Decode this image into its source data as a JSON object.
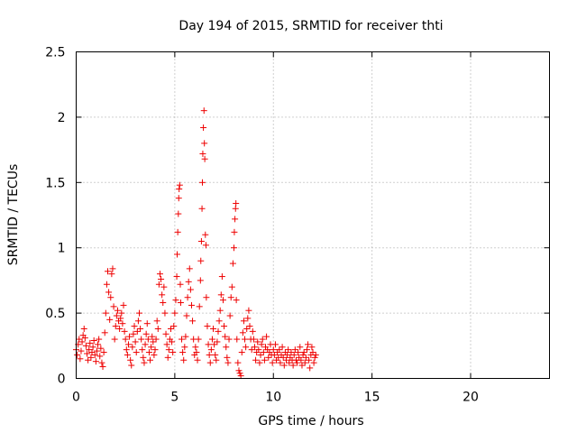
{
  "chart_data": {
    "type": "scatter",
    "title": "Day 194 of 2015, SRMTID for receiver thti",
    "xlabel": "GPS time / hours",
    "ylabel": "SRMTID / TECUs",
    "xlim": [
      0,
      24
    ],
    "ylim": [
      0,
      2.5
    ],
    "xticks": [
      0,
      5,
      10,
      15,
      20
    ],
    "yticks": [
      0,
      0.5,
      1,
      1.5,
      2,
      2.5
    ],
    "xtick_labels": [
      "0",
      "5",
      "10",
      "15",
      "20"
    ],
    "ytick_labels": [
      "0",
      "0.5",
      "1",
      "1.5",
      "2",
      "2.5"
    ],
    "grid": true,
    "marker": "plus",
    "series": [
      {
        "name": "SRMTID",
        "color": "#ee0000",
        "points": [
          [
            0.0,
            0.22
          ],
          [
            0.05,
            0.18
          ],
          [
            0.1,
            0.26
          ],
          [
            0.15,
            0.3
          ],
          [
            0.2,
            0.15
          ],
          [
            0.25,
            0.21
          ],
          [
            0.3,
            0.28
          ],
          [
            0.35,
            0.33
          ],
          [
            0.4,
            0.38
          ],
          [
            0.45,
            0.31
          ],
          [
            0.5,
            0.25
          ],
          [
            0.55,
            0.19
          ],
          [
            0.6,
            0.14
          ],
          [
            0.65,
            0.22
          ],
          [
            0.7,
            0.27
          ],
          [
            0.75,
            0.16
          ],
          [
            0.8,
            0.2
          ],
          [
            0.85,
            0.24
          ],
          [
            0.9,
            0.29
          ],
          [
            0.95,
            0.18
          ],
          [
            1.0,
            0.13
          ],
          [
            1.05,
            0.21
          ],
          [
            1.1,
            0.26
          ],
          [
            1.15,
            0.3
          ],
          [
            1.2,
            0.17
          ],
          [
            1.25,
            0.23
          ],
          [
            1.3,
            0.12
          ],
          [
            1.35,
            0.09
          ],
          [
            1.4,
            0.2
          ],
          [
            1.45,
            0.35
          ],
          [
            1.5,
            0.5
          ],
          [
            1.55,
            0.72
          ],
          [
            1.6,
            0.82
          ],
          [
            1.65,
            0.66
          ],
          [
            1.7,
            0.45
          ],
          [
            1.75,
            0.62
          ],
          [
            1.8,
            0.8
          ],
          [
            1.85,
            0.84
          ],
          [
            1.9,
            0.55
          ],
          [
            1.95,
            0.3
          ],
          [
            2.0,
            0.4
          ],
          [
            2.05,
            0.48
          ],
          [
            2.1,
            0.52
          ],
          [
            2.15,
            0.44
          ],
          [
            2.2,
            0.38
          ],
          [
            2.25,
            0.46
          ],
          [
            2.3,
            0.5
          ],
          [
            2.35,
            0.42
          ],
          [
            2.4,
            0.56
          ],
          [
            2.45,
            0.36
          ],
          [
            2.5,
            0.3
          ],
          [
            2.55,
            0.22
          ],
          [
            2.6,
            0.18
          ],
          [
            2.65,
            0.26
          ],
          [
            2.7,
            0.32
          ],
          [
            2.75,
            0.14
          ],
          [
            2.8,
            0.1
          ],
          [
            2.85,
            0.24
          ],
          [
            2.9,
            0.34
          ],
          [
            2.95,
            0.4
          ],
          [
            3.0,
            0.28
          ],
          [
            3.05,
            0.2
          ],
          [
            3.1,
            0.36
          ],
          [
            3.15,
            0.44
          ],
          [
            3.2,
            0.5
          ],
          [
            3.25,
            0.38
          ],
          [
            3.3,
            0.3
          ],
          [
            3.35,
            0.22
          ],
          [
            3.4,
            0.16
          ],
          [
            3.45,
            0.12
          ],
          [
            3.5,
            0.26
          ],
          [
            3.55,
            0.34
          ],
          [
            3.6,
            0.42
          ],
          [
            3.65,
            0.3
          ],
          [
            3.7,
            0.2
          ],
          [
            3.75,
            0.14
          ],
          [
            3.8,
            0.24
          ],
          [
            3.85,
            0.32
          ],
          [
            3.9,
            0.28
          ],
          [
            3.95,
            0.18
          ],
          [
            4.0,
            0.22
          ],
          [
            4.05,
            0.3
          ],
          [
            4.1,
            0.44
          ],
          [
            4.15,
            0.38
          ],
          [
            4.2,
            0.72
          ],
          [
            4.25,
            0.8
          ],
          [
            4.3,
            0.76
          ],
          [
            4.35,
            0.64
          ],
          [
            4.4,
            0.58
          ],
          [
            4.45,
            0.7
          ],
          [
            4.5,
            0.5
          ],
          [
            4.55,
            0.34
          ],
          [
            4.6,
            0.26
          ],
          [
            4.65,
            0.16
          ],
          [
            4.7,
            0.22
          ],
          [
            4.75,
            0.3
          ],
          [
            4.8,
            0.38
          ],
          [
            4.85,
            0.28
          ],
          [
            4.9,
            0.2
          ],
          [
            4.95,
            0.4
          ],
          [
            5.0,
            0.5
          ],
          [
            5.05,
            0.6
          ],
          [
            5.1,
            0.78
          ],
          [
            5.12,
            0.95
          ],
          [
            5.15,
            1.12
          ],
          [
            5.18,
            1.26
          ],
          [
            5.2,
            1.38
          ],
          [
            5.22,
            1.45
          ],
          [
            5.25,
            1.48
          ],
          [
            5.28,
            0.72
          ],
          [
            5.3,
            0.58
          ],
          [
            5.35,
            0.3
          ],
          [
            5.4,
            0.2
          ],
          [
            5.45,
            0.14
          ],
          [
            5.5,
            0.24
          ],
          [
            5.55,
            0.32
          ],
          [
            5.6,
            0.48
          ],
          [
            5.65,
            0.62
          ],
          [
            5.7,
            0.74
          ],
          [
            5.75,
            0.84
          ],
          [
            5.8,
            0.68
          ],
          [
            5.85,
            0.56
          ],
          [
            5.9,
            0.44
          ],
          [
            5.95,
            0.3
          ],
          [
            6.0,
            0.18
          ],
          [
            6.05,
            0.24
          ],
          [
            6.1,
            0.2
          ],
          [
            6.15,
            0.14
          ],
          [
            6.2,
            0.3
          ],
          [
            6.25,
            0.55
          ],
          [
            6.3,
            0.75
          ],
          [
            6.32,
            0.9
          ],
          [
            6.35,
            1.05
          ],
          [
            6.38,
            1.3
          ],
          [
            6.4,
            1.5
          ],
          [
            6.42,
            1.72
          ],
          [
            6.45,
            1.92
          ],
          [
            6.48,
            2.05
          ],
          [
            6.5,
            1.8
          ],
          [
            6.52,
            1.68
          ],
          [
            6.55,
            1.1
          ],
          [
            6.58,
            1.02
          ],
          [
            6.6,
            0.62
          ],
          [
            6.65,
            0.4
          ],
          [
            6.7,
            0.26
          ],
          [
            6.75,
            0.18
          ],
          [
            6.8,
            0.12
          ],
          [
            6.85,
            0.22
          ],
          [
            6.9,
            0.3
          ],
          [
            6.95,
            0.38
          ],
          [
            7.0,
            0.26
          ],
          [
            7.05,
            0.18
          ],
          [
            7.1,
            0.14
          ],
          [
            7.15,
            0.28
          ],
          [
            7.2,
            0.36
          ],
          [
            7.25,
            0.44
          ],
          [
            7.3,
            0.52
          ],
          [
            7.35,
            0.64
          ],
          [
            7.4,
            0.78
          ],
          [
            7.45,
            0.6
          ],
          [
            7.5,
            0.4
          ],
          [
            7.55,
            0.32
          ],
          [
            7.6,
            0.24
          ],
          [
            7.65,
            0.16
          ],
          [
            7.7,
            0.12
          ],
          [
            7.75,
            0.3
          ],
          [
            7.8,
            0.48
          ],
          [
            7.85,
            0.62
          ],
          [
            7.9,
            0.7
          ],
          [
            7.95,
            0.88
          ],
          [
            8.0,
            1.0
          ],
          [
            8.02,
            1.12
          ],
          [
            8.05,
            1.22
          ],
          [
            8.08,
            1.3
          ],
          [
            8.1,
            1.34
          ],
          [
            8.12,
            0.6
          ],
          [
            8.15,
            0.3
          ],
          [
            8.2,
            0.12
          ],
          [
            8.25,
            0.06
          ],
          [
            8.3,
            0.04
          ],
          [
            8.35,
            0.02
          ],
          [
            8.4,
            0.2
          ],
          [
            8.45,
            0.35
          ],
          [
            8.5,
            0.44
          ],
          [
            8.55,
            0.3
          ],
          [
            8.6,
            0.24
          ],
          [
            8.65,
            0.38
          ],
          [
            8.7,
            0.46
          ],
          [
            8.75,
            0.52
          ],
          [
            8.8,
            0.4
          ],
          [
            8.85,
            0.3
          ],
          [
            8.9,
            0.22
          ],
          [
            8.95,
            0.36
          ],
          [
            9.0,
            0.3
          ],
          [
            9.05,
            0.24
          ],
          [
            9.1,
            0.14
          ],
          [
            9.15,
            0.2
          ],
          [
            9.2,
            0.28
          ],
          [
            9.25,
            0.22
          ],
          [
            9.3,
            0.12
          ],
          [
            9.35,
            0.18
          ],
          [
            9.4,
            0.26
          ],
          [
            9.45,
            0.3
          ],
          [
            9.5,
            0.2
          ],
          [
            9.55,
            0.14
          ],
          [
            9.6,
            0.24
          ],
          [
            9.65,
            0.32
          ],
          [
            9.7,
            0.22
          ],
          [
            9.75,
            0.16
          ],
          [
            9.8,
            0.2
          ],
          [
            9.85,
            0.26
          ],
          [
            9.9,
            0.18
          ],
          [
            9.95,
            0.12
          ],
          [
            10.0,
            0.22
          ],
          [
            10.05,
            0.18
          ],
          [
            10.1,
            0.26
          ],
          [
            10.15,
            0.14
          ],
          [
            10.2,
            0.2
          ],
          [
            10.25,
            0.16
          ],
          [
            10.3,
            0.22
          ],
          [
            10.35,
            0.12
          ],
          [
            10.4,
            0.18
          ],
          [
            10.45,
            0.24
          ],
          [
            10.5,
            0.16
          ],
          [
            10.55,
            0.1
          ],
          [
            10.6,
            0.2
          ],
          [
            10.65,
            0.14
          ],
          [
            10.7,
            0.18
          ],
          [
            10.75,
            0.22
          ],
          [
            10.8,
            0.12
          ],
          [
            10.85,
            0.16
          ],
          [
            10.9,
            0.2
          ],
          [
            10.95,
            0.14
          ],
          [
            11.0,
            0.1
          ],
          [
            11.05,
            0.18
          ],
          [
            11.1,
            0.22
          ],
          [
            11.15,
            0.14
          ],
          [
            11.2,
            0.12
          ],
          [
            11.25,
            0.2
          ],
          [
            11.3,
            0.16
          ],
          [
            11.35,
            0.24
          ],
          [
            11.4,
            0.14
          ],
          [
            11.45,
            0.1
          ],
          [
            11.5,
            0.18
          ],
          [
            11.55,
            0.2
          ],
          [
            11.6,
            0.12
          ],
          [
            11.65,
            0.16
          ],
          [
            11.7,
            0.22
          ],
          [
            11.75,
            0.26
          ],
          [
            11.8,
            0.14
          ],
          [
            11.85,
            0.08
          ],
          [
            11.9,
            0.18
          ],
          [
            11.95,
            0.24
          ],
          [
            12.0,
            0.2
          ],
          [
            12.05,
            0.12
          ],
          [
            12.1,
            0.16
          ],
          [
            12.15,
            0.18
          ]
        ]
      }
    ]
  }
}
